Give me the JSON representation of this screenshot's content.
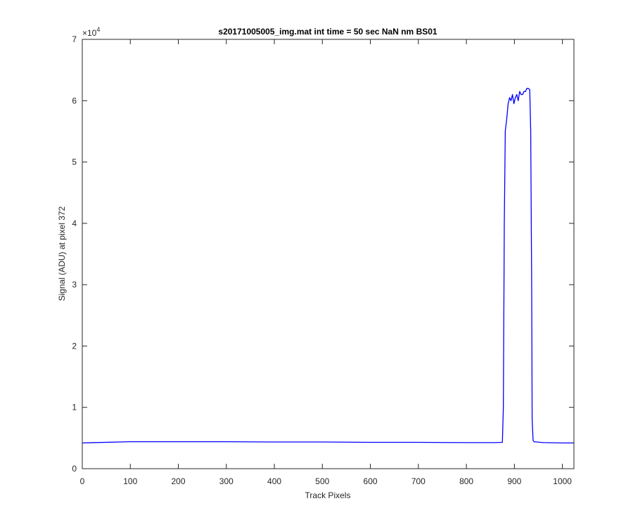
{
  "chart_data": {
    "type": "line",
    "title": "s20171005005_img.mat int time = 50 sec  NaN nm BS01",
    "xlabel": "Track Pixels",
    "ylabel": "Signal (ADU) at pixel 372",
    "xlim": [
      0,
      1024
    ],
    "ylim": [
      0,
      70000
    ],
    "x_ticks": [
      0,
      100,
      200,
      300,
      400,
      500,
      600,
      700,
      800,
      900,
      1000
    ],
    "y_ticks": [
      0,
      1,
      2,
      3,
      4,
      5,
      6,
      7
    ],
    "y_exponent_label": "×10",
    "y_exponent_power": "4",
    "y_scale_factor": 10000,
    "grid": false,
    "line_color": "#0000ff",
    "series": [
      {
        "x": [
          0,
          100,
          200,
          300,
          400,
          500,
          600,
          700,
          800,
          860,
          875,
          877,
          879,
          881,
          884,
          887,
          890,
          893,
          896,
          899,
          902,
          905,
          908,
          911,
          914,
          917,
          920,
          923,
          926,
          929,
          932,
          934,
          936,
          937,
          939,
          941,
          960,
          1000,
          1024
        ],
        "y": [
          4200,
          4400,
          4400,
          4400,
          4350,
          4350,
          4300,
          4300,
          4250,
          4250,
          4300,
          10000,
          40000,
          55000,
          57000,
          59500,
          60500,
          60000,
          61000,
          59500,
          60500,
          61000,
          60000,
          61500,
          61000,
          61000,
          61500,
          61500,
          62000,
          62000,
          61800,
          55000,
          30000,
          8000,
          4600,
          4400,
          4250,
          4200,
          4200
        ]
      }
    ]
  }
}
